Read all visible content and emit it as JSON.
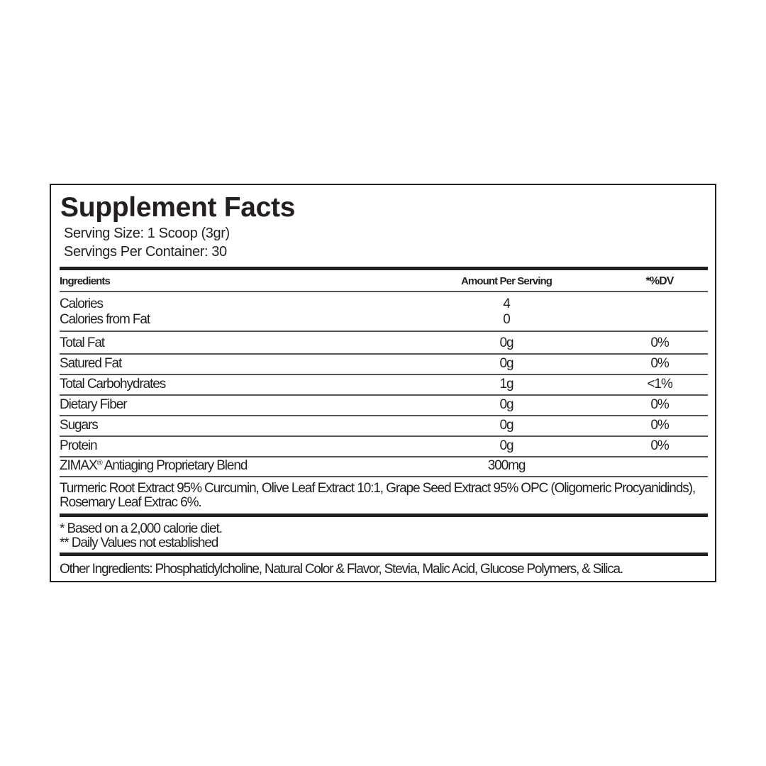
{
  "title": "Supplement Facts",
  "serving_size": "Serving Size: 1 Scoop (3gr)",
  "servings_per_container": "Servings Per Container: 30",
  "header": {
    "ingredients": "Ingredients",
    "amount": "Amount Per Serving",
    "dv": "*%DV"
  },
  "calories": {
    "name": "Calories",
    "amount": "4"
  },
  "calories_from_fat": {
    "name": "Calories from Fat",
    "amount": "0"
  },
  "rows": [
    {
      "name": "Total Fat",
      "amount": "0g",
      "dv": "0%"
    },
    {
      "name": "Satured Fat",
      "amount": "0g",
      "dv": "0%"
    },
    {
      "name": "Total Carbohydrates",
      "amount": "1g",
      "dv": "<1%"
    },
    {
      "name": "Dietary Fiber",
      "amount": "0g",
      "dv": "0%"
    },
    {
      "name": "Sugars",
      "amount": "0g",
      "dv": "0%"
    },
    {
      "name": "Protein",
      "amount": "0g",
      "dv": "0%"
    }
  ],
  "blend": {
    "brand": "ZIMAX",
    "mark": "®",
    "name": " Antiaging Proprietary Blend",
    "amount": "300mg"
  },
  "blend_description": "Turmeric Root Extract 95% Curcumin, Olive Leaf Extract 10:1, Grape Seed Extract 95% OPC (Oligomeric Procyanidinds), Rosemary Leaf Extrac 6%.",
  "footnotes": [
    "* Based on a 2,000 calorie diet.",
    "** Daily Values not established"
  ],
  "other_ingredients": "Other Ingredients: Phosphatidylcholine, Natural Color & Flavor, Stevia, Malic Acid, Glucose Polymers, & Silica."
}
